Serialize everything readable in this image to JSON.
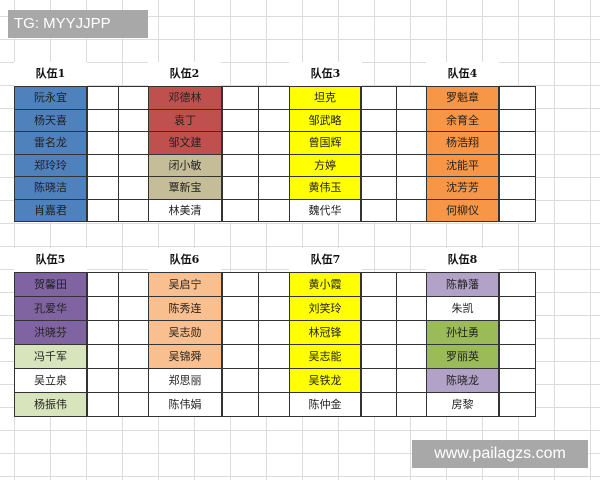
{
  "watermarks": {
    "top_left": "TG: MYYJJPP",
    "bottom_right": "www.pailagzs.com"
  },
  "colors": {
    "blue": "#4f81bd",
    "red": "#c0504d",
    "tan": "#c4bd97",
    "yellow": "#ffff00",
    "orange": "#f79646",
    "purple": "#8064a2",
    "light_green": "#d7e4bc",
    "peach": "#fabf8f",
    "lavender": "#b3a2c7",
    "green": "#9bbb59",
    "white": "#ffffff"
  },
  "teams": [
    {
      "title": "队伍1",
      "members": [
        {
          "name": "阮永宜",
          "color": "blue"
        },
        {
          "name": "杨天喜",
          "color": "blue"
        },
        {
          "name": "雷名龙",
          "color": "blue"
        },
        {
          "name": "郑玲玲",
          "color": "blue"
        },
        {
          "name": "陈晓洁",
          "color": "blue"
        },
        {
          "name": "肖嘉君",
          "color": "blue"
        }
      ]
    },
    {
      "title": "队伍2",
      "members": [
        {
          "name": "邓德林",
          "color": "red"
        },
        {
          "name": "袁丁",
          "color": "red"
        },
        {
          "name": "邹文建",
          "color": "red"
        },
        {
          "name": "闭小敏",
          "color": "tan"
        },
        {
          "name": "覃新宝",
          "color": "tan"
        },
        {
          "name": "林美清",
          "color": "white"
        }
      ]
    },
    {
      "title": "队伍3",
      "members": [
        {
          "name": "坦克",
          "color": "yellow"
        },
        {
          "name": "邹武略",
          "color": "yellow"
        },
        {
          "name": "曾国辉",
          "color": "yellow"
        },
        {
          "name": "方婷",
          "color": "yellow"
        },
        {
          "name": "黄伟玉",
          "color": "yellow"
        },
        {
          "name": "魏代华",
          "color": "white"
        }
      ]
    },
    {
      "title": "队伍4",
      "members": [
        {
          "name": "罗魁章",
          "color": "orange"
        },
        {
          "name": "余育全",
          "color": "orange"
        },
        {
          "name": "杨浩翔",
          "color": "orange"
        },
        {
          "name": "沈能平",
          "color": "orange"
        },
        {
          "name": "沈芳芳",
          "color": "orange"
        },
        {
          "name": "何柳仪",
          "color": "orange"
        }
      ]
    },
    {
      "title": "队伍5",
      "members": [
        {
          "name": "贺馨田",
          "color": "purple"
        },
        {
          "name": "孔爱华",
          "color": "purple"
        },
        {
          "name": "洪晓芬",
          "color": "purple"
        },
        {
          "name": "冯千军",
          "color": "light_green"
        },
        {
          "name": "吴立泉",
          "color": "white"
        },
        {
          "name": "杨振伟",
          "color": "light_green"
        }
      ]
    },
    {
      "title": "队伍6",
      "members": [
        {
          "name": "吴启宁",
          "color": "peach"
        },
        {
          "name": "陈秀连",
          "color": "peach"
        },
        {
          "name": "吴志勋",
          "color": "peach"
        },
        {
          "name": "吴锦舜",
          "color": "peach"
        },
        {
          "name": "郑思丽",
          "color": "white"
        },
        {
          "name": "陈伟娟",
          "color": "white"
        }
      ]
    },
    {
      "title": "队伍7",
      "members": [
        {
          "name": "黄小霞",
          "color": "yellow"
        },
        {
          "name": "刘笑玲",
          "color": "yellow"
        },
        {
          "name": "林冠锋",
          "color": "yellow"
        },
        {
          "name": "吴志能",
          "color": "yellow"
        },
        {
          "name": "吴铁龙",
          "color": "yellow"
        },
        {
          "name": "陈仲金",
          "color": "white"
        }
      ]
    },
    {
      "title": "队伍8",
      "members": [
        {
          "name": "陈静藩",
          "color": "lavender"
        },
        {
          "name": "朱凯",
          "color": "white"
        },
        {
          "name": "孙社勇",
          "color": "green"
        },
        {
          "name": "罗丽英",
          "color": "green"
        },
        {
          "name": "陈晓龙",
          "color": "lavender"
        },
        {
          "name": "房黎",
          "color": "white"
        }
      ]
    }
  ]
}
